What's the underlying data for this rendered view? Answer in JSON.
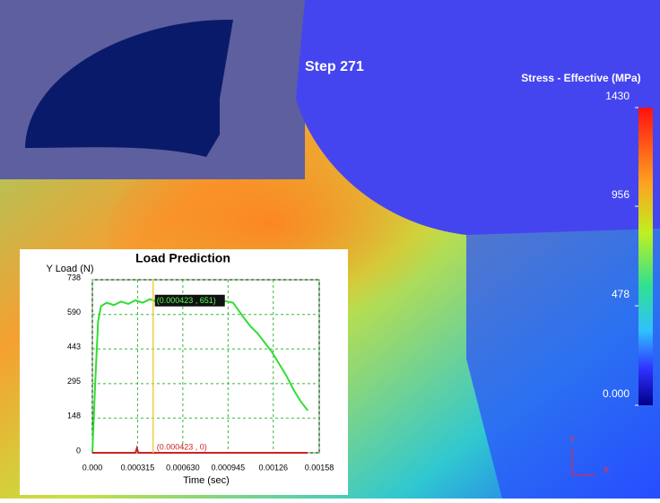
{
  "viewport": {
    "step": "Step 271"
  },
  "colorbar": {
    "title": "Stress - Effective (MPa)",
    "lim": [
      0,
      1430
    ],
    "ticks": [
      1430,
      956,
      478,
      {
        "value": 0,
        "label": "0.000"
      }
    ]
  },
  "triad": {
    "y": "Y",
    "x": "X"
  },
  "chart_data": {
    "type": "line",
    "title": "Load Prediction",
    "y_label": "Y Load (N)",
    "x_label": "Time (sec)",
    "xlim": [
      0,
      0.00158
    ],
    "ylim": [
      0,
      738
    ],
    "xticks": [
      {
        "value": 0,
        "label": "0.000"
      },
      0.000315,
      {
        "value": 0.00063,
        "label": "0.000630"
      },
      0.000945,
      0.00126,
      0.00158
    ],
    "yticks": [
      0,
      148,
      295,
      443,
      590,
      738
    ],
    "grid": true,
    "series": [
      {
        "color": "#33dd33",
        "x": [
          0,
          2e-05,
          4e-05,
          6e-05,
          0.0001,
          0.00015,
          0.0002,
          0.00025,
          0.0003,
          0.00035,
          0.0004,
          0.00045,
          0.0005,
          0.0006,
          0.0007,
          0.0008,
          0.0009,
          0.00098,
          0.00105,
          0.0011,
          0.00115,
          0.0012,
          0.00125,
          0.0013,
          0.00135,
          0.0014,
          0.00145,
          0.0015
        ],
        "values": [
          0,
          300,
          560,
          625,
          640,
          630,
          645,
          635,
          650,
          640,
          655,
          645,
          650,
          640,
          655,
          645,
          650,
          640,
          580,
          540,
          510,
          470,
          430,
          380,
          330,
          270,
          220,
          180
        ]
      },
      {
        "color": "#cc2222",
        "x": [
          0,
          0.0003,
          0.00031,
          0.00032,
          0.0015
        ],
        "values": [
          0,
          0,
          20,
          0,
          0
        ]
      }
    ],
    "cursor": {
      "x": 0.000423,
      "color": "#f0d040",
      "labels": [
        {
          "x": 0.000423,
          "y": 651,
          "text": "(0.000423 , 651)"
        },
        {
          "x": 0.000423,
          "y": 0,
          "text": "(0.000423 , 0)"
        }
      ]
    }
  }
}
